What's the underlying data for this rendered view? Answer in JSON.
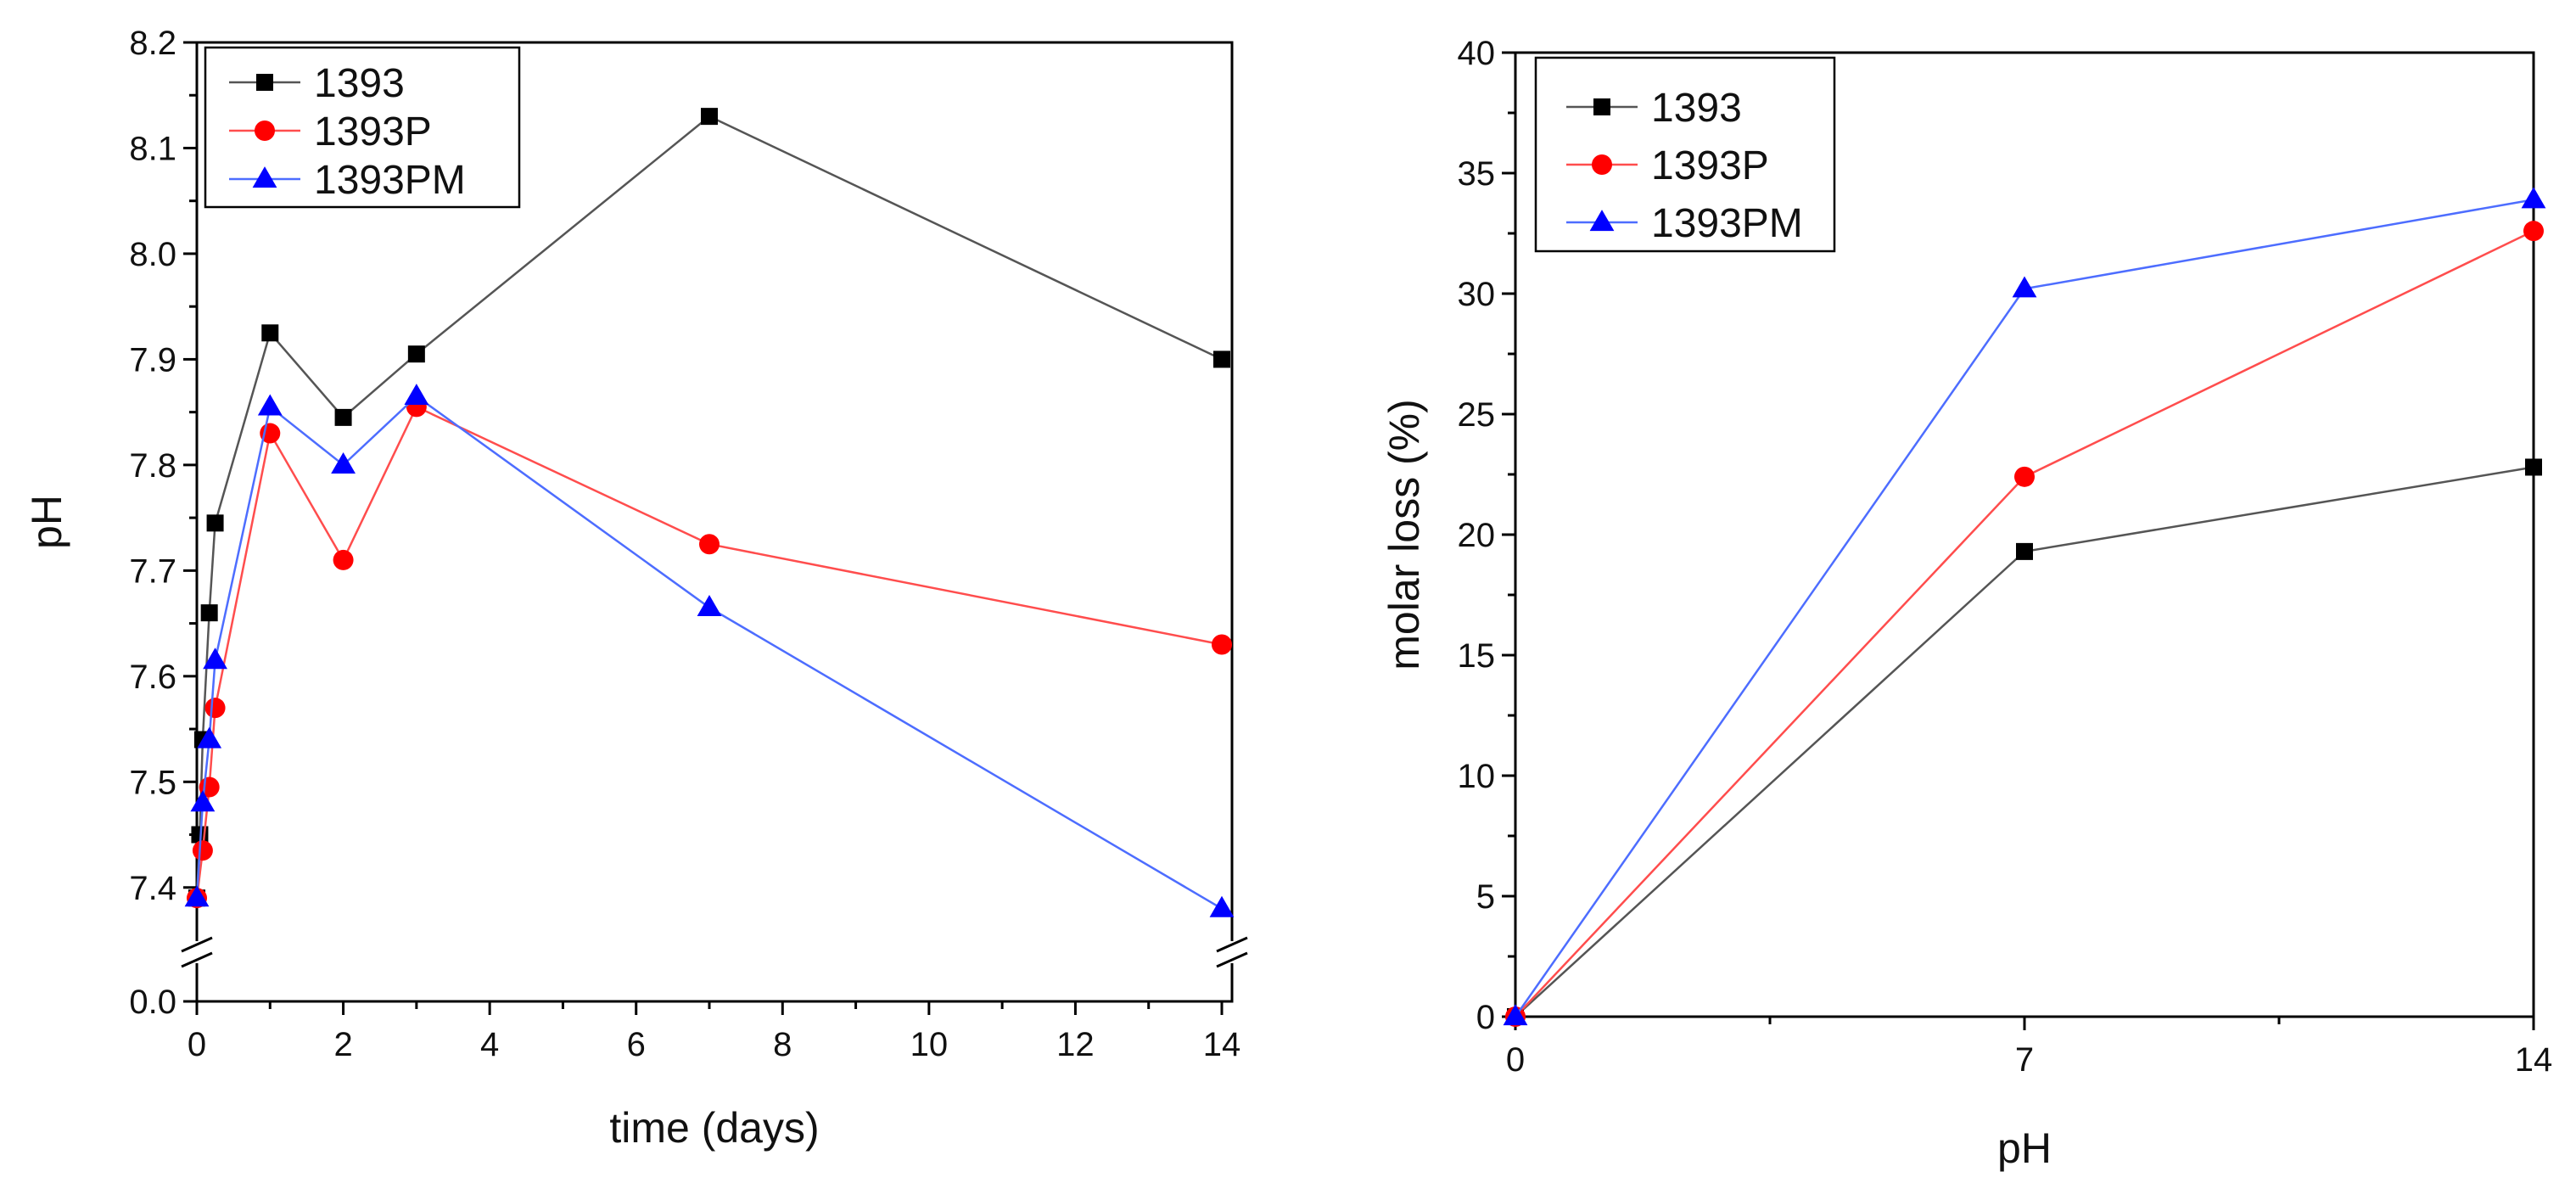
{
  "chart_data": [
    {
      "type": "line",
      "xlabel": "time (days)",
      "ylabel": "pH",
      "xlim": [
        0,
        14
      ],
      "ylim": [
        7.35,
        8.2
      ],
      "axis_break": {
        "below": 7.35,
        "lower_tick_value": 0.0,
        "lower_tick_label": "0.0"
      },
      "x_ticks": [
        0,
        2,
        4,
        6,
        8,
        10,
        12,
        14
      ],
      "x_tick_labels": [
        "0",
        "2",
        "4",
        "6",
        "8",
        "10",
        "12",
        "14"
      ],
      "y_ticks": [
        7.4,
        7.5,
        7.6,
        7.7,
        7.8,
        7.9,
        8.0,
        8.1,
        8.2
      ],
      "y_tick_labels": [
        "7.4",
        "7.5",
        "7.6",
        "7.7",
        "7.8",
        "7.9",
        "8.0",
        "8.1",
        "8.2"
      ],
      "legend_position": "top-left",
      "series": [
        {
          "name": "1393",
          "color": "#000000",
          "line_color": "#555555",
          "marker": "square",
          "x": [
            0,
            0.04,
            0.08,
            0.17,
            0.25,
            1,
            2,
            3,
            7,
            14
          ],
          "y": [
            7.39,
            7.45,
            7.54,
            7.66,
            7.745,
            7.925,
            7.845,
            7.905,
            8.13,
            7.9
          ]
        },
        {
          "name": "1393P",
          "color": "#ff0000",
          "line_color": "#ff4d4d",
          "marker": "circle",
          "x": [
            0,
            0.08,
            0.17,
            0.25,
            1,
            2,
            3,
            7,
            14
          ],
          "y": [
            7.39,
            7.435,
            7.495,
            7.57,
            7.83,
            7.71,
            7.855,
            7.725,
            7.63
          ]
        },
        {
          "name": "1393PM",
          "color": "#0000ff",
          "line_color": "#4d6dff",
          "marker": "triangle",
          "x": [
            0,
            0.08,
            0.17,
            0.25,
            1,
            2,
            3,
            7,
            14
          ],
          "y": [
            7.39,
            7.48,
            7.54,
            7.615,
            7.855,
            7.8,
            7.865,
            7.665,
            7.38
          ]
        }
      ]
    },
    {
      "type": "line",
      "xlabel": "pH",
      "ylabel": "molar loss (%)",
      "xlim": [
        0,
        14
      ],
      "ylim": [
        0,
        40
      ],
      "x_ticks": [
        0,
        7,
        14
      ],
      "x_tick_labels": [
        "0",
        "7",
        "14"
      ],
      "y_ticks": [
        0,
        5,
        10,
        15,
        20,
        25,
        30,
        35,
        40
      ],
      "y_tick_labels": [
        "0",
        "5",
        "10",
        "15",
        "20",
        "25",
        "30",
        "35",
        "40"
      ],
      "legend_position": "top-left",
      "series": [
        {
          "name": "1393",
          "color": "#000000",
          "line_color": "#555555",
          "marker": "square",
          "x": [
            0,
            7,
            14
          ],
          "y": [
            0,
            19.3,
            22.8
          ]
        },
        {
          "name": "1393P",
          "color": "#ff0000",
          "line_color": "#ff4d4d",
          "marker": "circle",
          "x": [
            0,
            7,
            14
          ],
          "y": [
            0,
            22.4,
            32.6
          ]
        },
        {
          "name": "1393PM",
          "color": "#0000ff",
          "line_color": "#4d6dff",
          "marker": "triangle",
          "x": [
            0,
            7,
            14
          ],
          "y": [
            0,
            30.2,
            33.9
          ]
        }
      ]
    }
  ]
}
